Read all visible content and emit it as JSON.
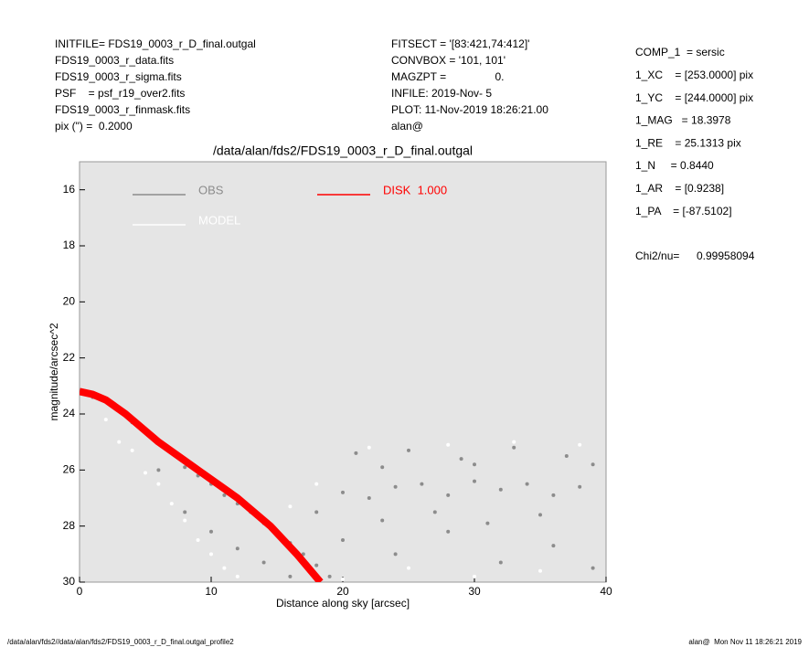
{
  "header": {
    "left": [
      "INITFILE= FDS19_0003_r_D_final.outgal",
      "FDS19_0003_r_data.fits",
      "FDS19_0003_r_sigma.fits",
      "PSF    = psf_r19_over2.fits",
      "FDS19_0003_r_finmask.fits",
      "pix (\") =  0.2000"
    ],
    "middle": [
      "FITSECT = '[83:421,74:412]'",
      "CONVBOX = '101, 101'",
      "MAGZPT =                0.",
      "INFILE: 2019-Nov- 5",
      "PLOT: 11-Nov-2019 18:26:21.00",
      "alan@"
    ],
    "right": [
      "COMP_1  = sersic",
      "1_XC    = [253.0000] pix",
      "1_YC    = [244.0000] pix",
      "1_MAG   = 18.3978",
      "1_RE    = 25.1313 pix",
      "1_N     = 0.8440",
      "1_AR    = [0.9238]",
      "1_PA    = [-87.5102]"
    ],
    "chi_label": "Chi2/nu=",
    "chi_value": "0.99958094"
  },
  "footer": {
    "left": "/data/alan/fds2//data/alan/fds2/FDS19_0003_r_D_final.outgal_profile2",
    "right": "alan@  Mon Nov 11 18:26:21 2019"
  },
  "chart_data": {
    "type": "scatter",
    "title": "/data/alan/fds2/FDS19_0003_r_D_final.outgal",
    "x_label": "Distance along sky [arcsec]",
    "y_label": "magnitude/arcsec^2",
    "xlim": [
      0,
      40
    ],
    "xticks": [
      0,
      10,
      20,
      30,
      40
    ],
    "ylim": [
      15,
      30
    ],
    "yticks": [
      16,
      18,
      20,
      22,
      24,
      26,
      28,
      30
    ],
    "y_inverted": true,
    "background": "#e5e5e5",
    "legend": "top-left",
    "series": [
      {
        "name": "OBS",
        "color": "#8c8c8c",
        "mode": "points",
        "x": [
          0.5,
          1,
          2,
          3,
          4,
          5,
          6,
          7,
          8,
          9,
          10,
          11,
          12,
          13,
          14,
          15,
          16,
          17,
          18,
          6,
          8,
          10,
          12,
          14,
          16,
          18,
          20,
          22,
          24,
          26,
          28,
          30,
          32,
          34,
          36,
          38,
          20,
          24,
          28,
          32,
          36,
          39,
          21,
          25,
          29,
          33,
          37,
          39,
          19,
          23,
          27,
          31,
          35,
          23,
          30
        ],
        "values": [
          23.3,
          23.4,
          23.5,
          23.9,
          24.3,
          24.6,
          25.0,
          25.4,
          25.9,
          26.2,
          26.5,
          26.9,
          27.2,
          27.5,
          27.9,
          28.3,
          28.6,
          29.0,
          29.4,
          26.0,
          27.5,
          28.2,
          28.8,
          29.3,
          29.8,
          27.5,
          26.8,
          27.0,
          26.6,
          26.5,
          26.9,
          26.4,
          26.7,
          26.5,
          26.9,
          26.6,
          28.5,
          29.0,
          28.2,
          29.3,
          28.7,
          29.5,
          25.4,
          25.3,
          25.6,
          25.2,
          25.5,
          25.8,
          29.8,
          27.8,
          27.5,
          27.9,
          27.6,
          25.9,
          25.8
        ]
      },
      {
        "name": "MODEL",
        "color": "#ffffff",
        "mode": "points",
        "x": [
          2,
          4,
          6,
          8,
          10,
          12,
          3,
          5,
          7,
          9,
          11,
          20,
          25,
          30,
          35,
          22,
          28,
          33,
          38,
          16,
          18
        ],
        "values": [
          24.2,
          25.3,
          26.5,
          27.8,
          29.0,
          29.8,
          25.0,
          26.1,
          27.2,
          28.5,
          29.5,
          29.9,
          29.5,
          29.8,
          29.6,
          25.2,
          25.1,
          25.0,
          25.1,
          27.3,
          26.5
        ]
      },
      {
        "name": "DISK  1.000",
        "color": "#ff0000",
        "mode": "line",
        "x": [
          0,
          1,
          2,
          3.5,
          6,
          9,
          12,
          14.5,
          16.5,
          18.3
        ],
        "values": [
          23.2,
          23.3,
          23.5,
          24,
          25,
          26,
          27,
          28,
          29,
          30
        ]
      }
    ]
  }
}
